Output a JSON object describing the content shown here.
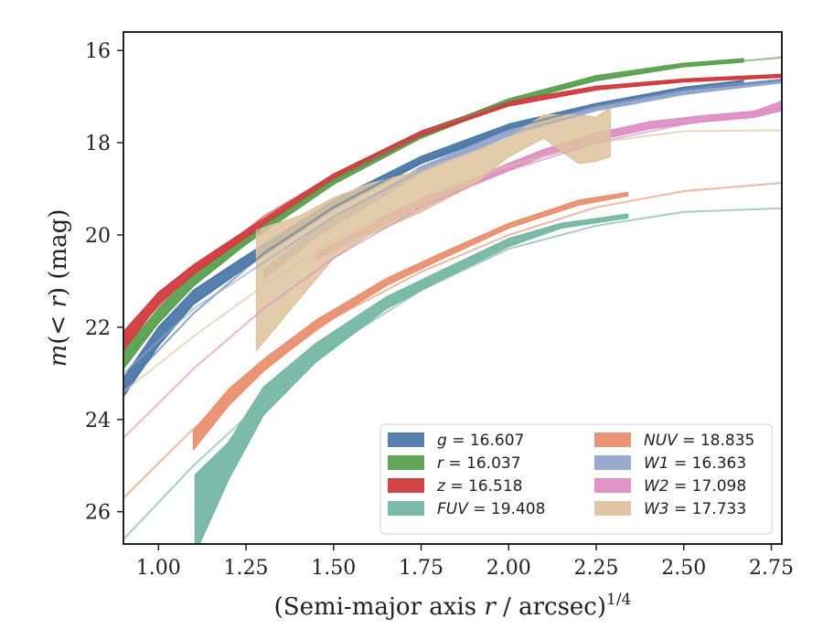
{
  "chart_data": {
    "type": "line",
    "xlabel": "(Semi-major axis r / arcsec)^{1/4}",
    "ylabel": "m(< r) (mag)",
    "xlim": [
      0.9,
      2.78
    ],
    "ylim": [
      26.7,
      15.6
    ],
    "y_inverted": true,
    "xticks": [
      "1.00",
      "1.25",
      "1.50",
      "1.75",
      "2.00",
      "2.25",
      "2.50",
      "2.75"
    ],
    "yticks": [
      "16",
      "18",
      "20",
      "22",
      "24",
      "26"
    ],
    "legend_position": "lower-right",
    "legend_columns": 2,
    "series": [
      {
        "name": "g = 16.607",
        "label_var": "g",
        "label_value": "16.607",
        "color": "#4C78A8",
        "faint": [
          [
            0.9,
            23.3
          ],
          [
            1.1,
            21.7
          ],
          [
            1.3,
            20.4
          ],
          [
            1.5,
            19.4
          ],
          [
            1.75,
            18.4
          ],
          [
            2.0,
            17.7
          ],
          [
            2.25,
            17.2
          ],
          [
            2.5,
            16.85
          ],
          [
            2.78,
            16.65
          ]
        ],
        "band": [
          [
            0.9,
            23.5,
            23.1
          ],
          [
            1.0,
            22.4,
            22.0
          ],
          [
            1.1,
            21.5,
            21.2
          ],
          [
            1.25,
            20.7,
            20.45
          ],
          [
            1.5,
            19.45,
            19.25
          ],
          [
            1.75,
            18.45,
            18.3
          ],
          [
            2.0,
            17.75,
            17.6
          ],
          [
            2.25,
            17.25,
            17.15
          ],
          [
            2.5,
            16.9,
            16.8
          ],
          [
            2.67,
            16.75,
            16.65
          ]
        ]
      },
      {
        "name": "r = 16.037",
        "label_var": "r",
        "label_value": "16.037",
        "color": "#59A14F",
        "faint": [
          [
            0.9,
            22.7
          ],
          [
            1.1,
            21.1
          ],
          [
            1.3,
            19.8
          ],
          [
            1.5,
            18.8
          ],
          [
            1.75,
            17.8
          ],
          [
            2.0,
            17.1
          ],
          [
            2.25,
            16.65
          ],
          [
            2.5,
            16.35
          ],
          [
            2.78,
            16.15
          ]
        ],
        "band": [
          [
            0.9,
            22.9,
            22.5
          ],
          [
            1.0,
            21.9,
            21.6
          ],
          [
            1.1,
            21.1,
            20.85
          ],
          [
            1.25,
            20.2,
            20.0
          ],
          [
            1.5,
            18.9,
            18.75
          ],
          [
            1.75,
            17.9,
            17.8
          ],
          [
            2.0,
            17.15,
            17.05
          ],
          [
            2.25,
            16.65,
            16.55
          ],
          [
            2.5,
            16.35,
            16.28
          ],
          [
            2.67,
            16.25,
            16.18
          ]
        ]
      },
      {
        "name": "z = 16.518",
        "label_var": "z",
        "label_value": "16.518",
        "color": "#D13B3F",
        "faint": [
          [
            0.9,
            22.3
          ],
          [
            1.1,
            20.8
          ],
          [
            1.3,
            19.6
          ],
          [
            1.5,
            18.7
          ],
          [
            1.75,
            17.8
          ],
          [
            2.0,
            17.2
          ],
          [
            2.25,
            16.85
          ],
          [
            2.5,
            16.65
          ],
          [
            2.78,
            16.55
          ]
        ],
        "band": [
          [
            0.9,
            22.5,
            22.1
          ],
          [
            1.0,
            21.5,
            21.25
          ],
          [
            1.1,
            20.85,
            20.65
          ],
          [
            1.25,
            20.05,
            19.9
          ],
          [
            1.5,
            18.8,
            18.68
          ],
          [
            1.75,
            17.85,
            17.75
          ],
          [
            2.0,
            17.2,
            17.1
          ],
          [
            2.25,
            16.85,
            16.78
          ],
          [
            2.5,
            16.68,
            16.62
          ],
          [
            2.78,
            16.58,
            16.52
          ]
        ]
      },
      {
        "name": "FUV = 19.408",
        "label_var": "FUV",
        "label_value": "19.408",
        "color": "#76B7A4",
        "faint": [
          [
            0.9,
            26.6
          ],
          [
            1.1,
            25.0
          ],
          [
            1.3,
            23.6
          ],
          [
            1.5,
            22.4
          ],
          [
            1.75,
            21.2
          ],
          [
            2.0,
            20.3
          ],
          [
            2.25,
            19.8
          ],
          [
            2.5,
            19.5
          ],
          [
            2.78,
            19.42
          ]
        ],
        "band": [
          [
            1.105,
            26.9,
            25.2
          ],
          [
            1.2,
            25.3,
            24.5
          ],
          [
            1.3,
            23.9,
            23.3
          ],
          [
            1.45,
            22.75,
            22.35
          ],
          [
            1.65,
            21.6,
            21.35
          ],
          [
            1.8,
            21.0,
            20.8
          ],
          [
            2.0,
            20.25,
            20.08
          ],
          [
            2.15,
            19.85,
            19.75
          ],
          [
            2.34,
            19.63,
            19.55
          ]
        ]
      },
      {
        "name": "NUV = 18.835",
        "label_var": "NUV",
        "label_value": "18.835",
        "color": "#E9906F",
        "faint": [
          [
            0.9,
            25.7
          ],
          [
            1.1,
            24.2
          ],
          [
            1.3,
            22.9
          ],
          [
            1.5,
            21.8
          ],
          [
            1.75,
            20.8
          ],
          [
            2.0,
            20.0
          ],
          [
            2.25,
            19.4
          ],
          [
            2.5,
            19.05
          ],
          [
            2.78,
            18.87
          ]
        ],
        "band": [
          [
            1.1,
            24.65,
            24.25
          ],
          [
            1.2,
            23.7,
            23.35
          ],
          [
            1.3,
            22.95,
            22.7
          ],
          [
            1.45,
            22.05,
            21.85
          ],
          [
            1.65,
            21.1,
            20.95
          ],
          [
            1.8,
            20.55,
            20.42
          ],
          [
            2.0,
            19.85,
            19.75
          ],
          [
            2.2,
            19.35,
            19.25
          ],
          [
            2.34,
            19.15,
            19.08
          ]
        ]
      },
      {
        "name": "W1 = 16.363",
        "label_var": "W1",
        "label_value": "16.363",
        "color": "#95A6CC",
        "faint": [
          [
            0.9,
            23.0
          ],
          [
            1.1,
            21.6
          ],
          [
            1.3,
            20.6
          ],
          [
            1.5,
            19.6
          ],
          [
            1.75,
            18.6
          ],
          [
            2.0,
            17.8
          ],
          [
            2.25,
            17.3
          ],
          [
            2.5,
            16.95
          ],
          [
            2.78,
            16.68
          ]
        ],
        "band": [
          [
            1.3,
            20.95,
            20.75
          ],
          [
            1.45,
            20.05,
            19.88
          ],
          [
            1.6,
            19.35,
            19.2
          ],
          [
            1.75,
            18.65,
            18.52
          ],
          [
            2.0,
            17.85,
            17.73
          ],
          [
            2.25,
            17.3,
            17.2
          ],
          [
            2.5,
            16.95,
            16.85
          ],
          [
            2.78,
            16.7,
            16.62
          ]
        ]
      },
      {
        "name": "W2 = 17.098",
        "label_var": "W2",
        "label_value": "17.098",
        "color": "#DE8EC4",
        "faint": [
          [
            0.9,
            24.4
          ],
          [
            1.1,
            22.9
          ],
          [
            1.3,
            21.6
          ],
          [
            1.5,
            20.5
          ],
          [
            1.75,
            19.4
          ],
          [
            2.0,
            18.6
          ],
          [
            2.25,
            18.0
          ],
          [
            2.5,
            17.6
          ],
          [
            2.78,
            17.25
          ]
        ],
        "band": [
          [
            1.45,
            20.55,
            20.4
          ],
          [
            1.6,
            19.95,
            19.8
          ],
          [
            1.75,
            19.35,
            19.22
          ],
          [
            1.9,
            18.9,
            18.78
          ],
          [
            2.0,
            18.6,
            18.45
          ],
          [
            2.1,
            18.3,
            18.15
          ],
          [
            2.25,
            17.95,
            17.8
          ],
          [
            2.4,
            17.7,
            17.55
          ],
          [
            2.55,
            17.55,
            17.42
          ],
          [
            2.7,
            17.45,
            17.32
          ],
          [
            2.78,
            17.3,
            17.1
          ]
        ]
      },
      {
        "name": "W3 = 17.733",
        "label_var": "W3",
        "label_value": "17.733",
        "color": "#DEC39E",
        "faint": [
          [
            0.9,
            23.4
          ],
          [
            1.1,
            22.2
          ],
          [
            1.3,
            21.1
          ],
          [
            1.5,
            20.1
          ],
          [
            1.75,
            19.2
          ],
          [
            2.0,
            18.5
          ],
          [
            2.25,
            18.0
          ],
          [
            2.5,
            17.75
          ],
          [
            2.78,
            17.73
          ]
        ],
        "band": [
          [
            1.28,
            22.5,
            19.9
          ],
          [
            1.4,
            21.4,
            19.6
          ],
          [
            1.5,
            20.5,
            19.2
          ],
          [
            1.6,
            20.0,
            18.9
          ],
          [
            1.75,
            19.5,
            18.6
          ],
          [
            1.9,
            18.9,
            18.2
          ],
          [
            2.0,
            18.3,
            17.9
          ],
          [
            2.1,
            17.9,
            17.4
          ],
          [
            2.2,
            18.45,
            17.4
          ],
          [
            2.25,
            18.4,
            17.45
          ],
          [
            2.29,
            18.3,
            17.25
          ]
        ]
      }
    ]
  }
}
